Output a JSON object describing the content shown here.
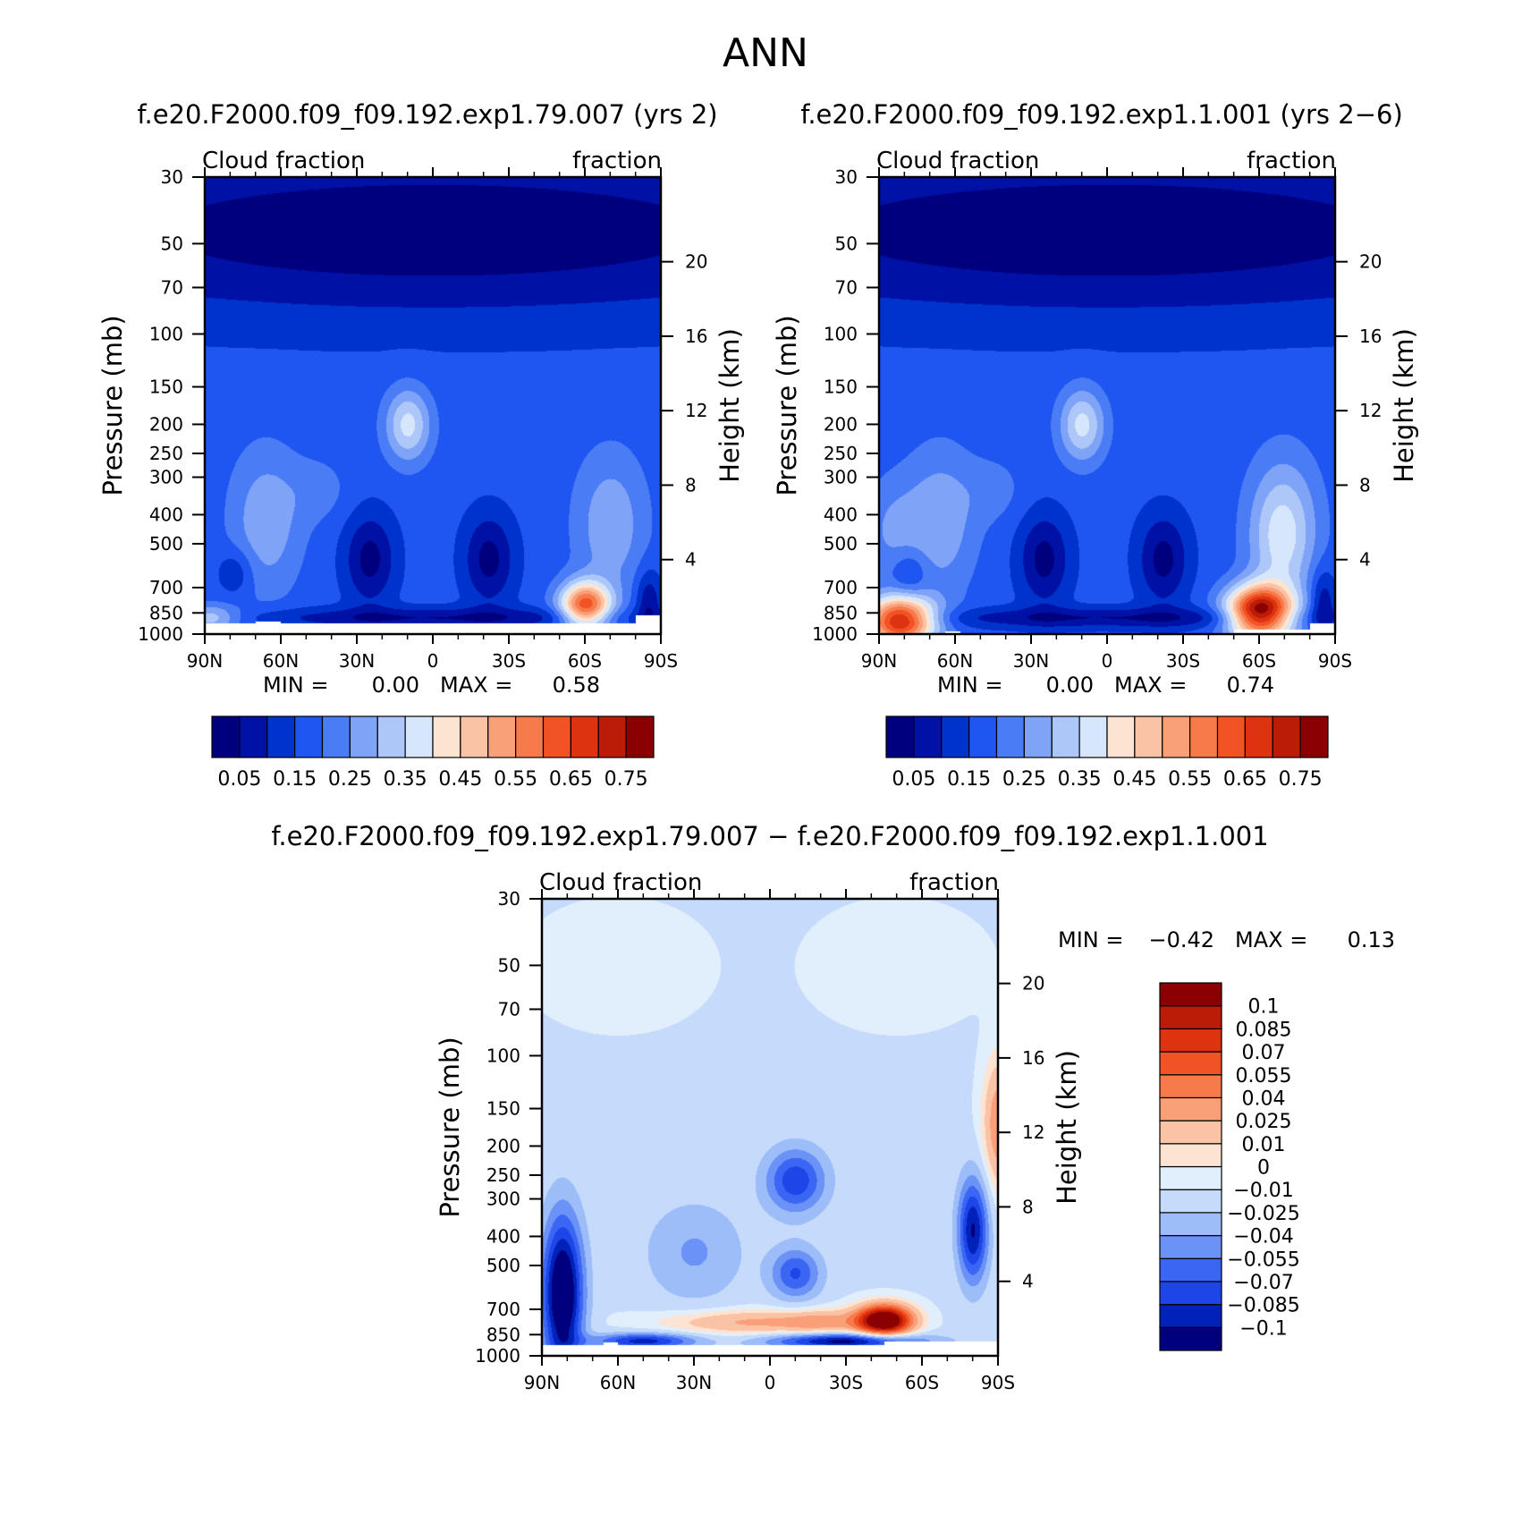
{
  "figure_title": "ANN",
  "panels": [
    {
      "title": "f.e20.F2000.f09_f09.192.exp1.79.007 (yrs 2)",
      "left_label": "Cloud fraction",
      "right_label": "fraction",
      "y_label": "Pressure (mb)",
      "y2_label": "Height (km)",
      "stats": {
        "min_label": "MIN =",
        "min": "0.00",
        "max_label": "MAX =",
        "max": "0.58"
      }
    },
    {
      "title": "f.e20.F2000.f09_f09.192.exp1.1.001 (yrs 2−6)",
      "left_label": "Cloud fraction",
      "right_label": "fraction",
      "y_label": "Pressure (mb)",
      "y2_label": "Height (km)",
      "stats": {
        "min_label": "MIN =",
        "min": "0.00",
        "max_label": "MAX =",
        "max": "0.74"
      }
    },
    {
      "title": "f.e20.F2000.f09_f09.192.exp1.79.007 − f.e20.F2000.f09_f09.192.exp1.1.001",
      "left_label": "Cloud fraction",
      "right_label": "fraction",
      "y_label": "Pressure (mb)",
      "y2_label": "Height (km)",
      "stats": {
        "min_label": "MIN =",
        "min": "−0.42",
        "max_label": "MAX =",
        "max": "0.13"
      }
    }
  ],
  "x_ticks": [
    "90N",
    "60N",
    "30N",
    "0",
    "30S",
    "60S",
    "90S"
  ],
  "y_ticks": [
    "30",
    "50",
    "70",
    "100",
    "150",
    "200",
    "250",
    "300",
    "400",
    "500",
    "700",
    "850",
    "1000"
  ],
  "y2_ticks": [
    "20",
    "16",
    "12",
    "8",
    "4"
  ],
  "colorbar_main": {
    "colors": [
      "#00007f",
      "#0011a5",
      "#0033cc",
      "#1f55f0",
      "#4a7cf6",
      "#7ea3f7",
      "#adc7f9",
      "#d6e6fb",
      "#fde4d2",
      "#fbc3a5",
      "#f9a078",
      "#f77a4b",
      "#f25324",
      "#de3310",
      "#bb1c08",
      "#8b0000"
    ],
    "labels": [
      "0.05",
      "0.15",
      "0.25",
      "0.35",
      "0.45",
      "0.55",
      "0.65",
      "0.75"
    ]
  },
  "colorbar_diff": {
    "colors": [
      "#00007f",
      "#0022b8",
      "#1d45e8",
      "#3b66f4",
      "#6b92f6",
      "#9dbdf9",
      "#c6dbfb",
      "#e1eefc",
      "#fde4d2",
      "#fbc3a5",
      "#f9a078",
      "#f77a4b",
      "#f25324",
      "#de3310",
      "#bb1c08",
      "#8b0000"
    ],
    "labels": [
      "−0.1",
      "−0.085",
      "−0.07",
      "−0.055",
      "−0.04",
      "−0.025",
      "−0.01",
      "0",
      "0.01",
      "0.025",
      "0.04",
      "0.055",
      "0.07",
      "0.085",
      "0.1"
    ]
  },
  "chart_data": [
    {
      "type": "heatmap",
      "title": "f.e20.F2000.f09_f09.192.exp1.79.007 (yrs 2)",
      "xlabel": "",
      "ylabel": "Pressure (mb)",
      "y2label": "Height (km)",
      "x_range": [
        "90N",
        "90S"
      ],
      "y_range_mb": [
        1000,
        30
      ],
      "log_pressure_axis": true,
      "min": 0.0,
      "max": 0.58,
      "features": [
        {
          "lat": -60,
          "p": 800,
          "value": 0.58
        },
        {
          "lat": 10,
          "p": 200,
          "value": 0.35
        },
        {
          "lat": 65,
          "p": 400,
          "value": 0.35
        },
        {
          "lat": 25,
          "p": 550,
          "value": 0.03
        },
        {
          "lat": -20,
          "p": 550,
          "value": 0.03
        },
        {
          "lat": 0,
          "p": 60,
          "value": 0.02
        },
        {
          "lat": 75,
          "p": 620,
          "value": 0.22
        }
      ]
    },
    {
      "type": "heatmap",
      "title": "f.e20.F2000.f09_f09.192.exp1.1.001 (yrs 2−6)",
      "xlabel": "",
      "ylabel": "Pressure (mb)",
      "y2label": "Height (km)",
      "x_range": [
        "90N",
        "90S"
      ],
      "y_range_mb": [
        1000,
        30
      ],
      "log_pressure_axis": true,
      "min": 0.0,
      "max": 0.74,
      "features": [
        {
          "lat": -60,
          "p": 850,
          "value": 0.74
        },
        {
          "lat": 85,
          "p": 950,
          "value": 0.7
        },
        {
          "lat": 10,
          "p": 200,
          "value": 0.38
        },
        {
          "lat": -70,
          "p": 450,
          "value": 0.42
        },
        {
          "lat": 20,
          "p": 600,
          "value": 0.05
        },
        {
          "lat": -20,
          "p": 600,
          "value": 0.05
        },
        {
          "lat": 0,
          "p": 60,
          "value": 0.02
        }
      ]
    },
    {
      "type": "heatmap",
      "title": "f.e20.F2000.f09_f09.192.exp1.79.007 − f.e20.F2000.f09_f09.192.exp1.1.001",
      "xlabel": "",
      "ylabel": "Pressure (mb)",
      "y2label": "Height (km)",
      "x_range": [
        "90N",
        "90S"
      ],
      "y_range_mb": [
        1000,
        30
      ],
      "log_pressure_axis": true,
      "min": -0.42,
      "max": 0.13,
      "features": [
        {
          "lat": -45,
          "p": 750,
          "value": 0.13
        },
        {
          "lat": 20,
          "p": 760,
          "value": 0.03
        },
        {
          "lat": -20,
          "p": 760,
          "value": 0.04
        },
        {
          "lat": 80,
          "p": 600,
          "value": -0.1
        },
        {
          "lat": -80,
          "p": 370,
          "value": -0.08
        },
        {
          "lat": -10,
          "p": 250,
          "value": -0.06
        },
        {
          "lat": -10,
          "p": 530,
          "value": -0.06
        },
        {
          "lat": -30,
          "p": 880,
          "value": -0.1
        },
        {
          "lat": -90,
          "p": 150,
          "value": 0.04
        }
      ]
    }
  ]
}
